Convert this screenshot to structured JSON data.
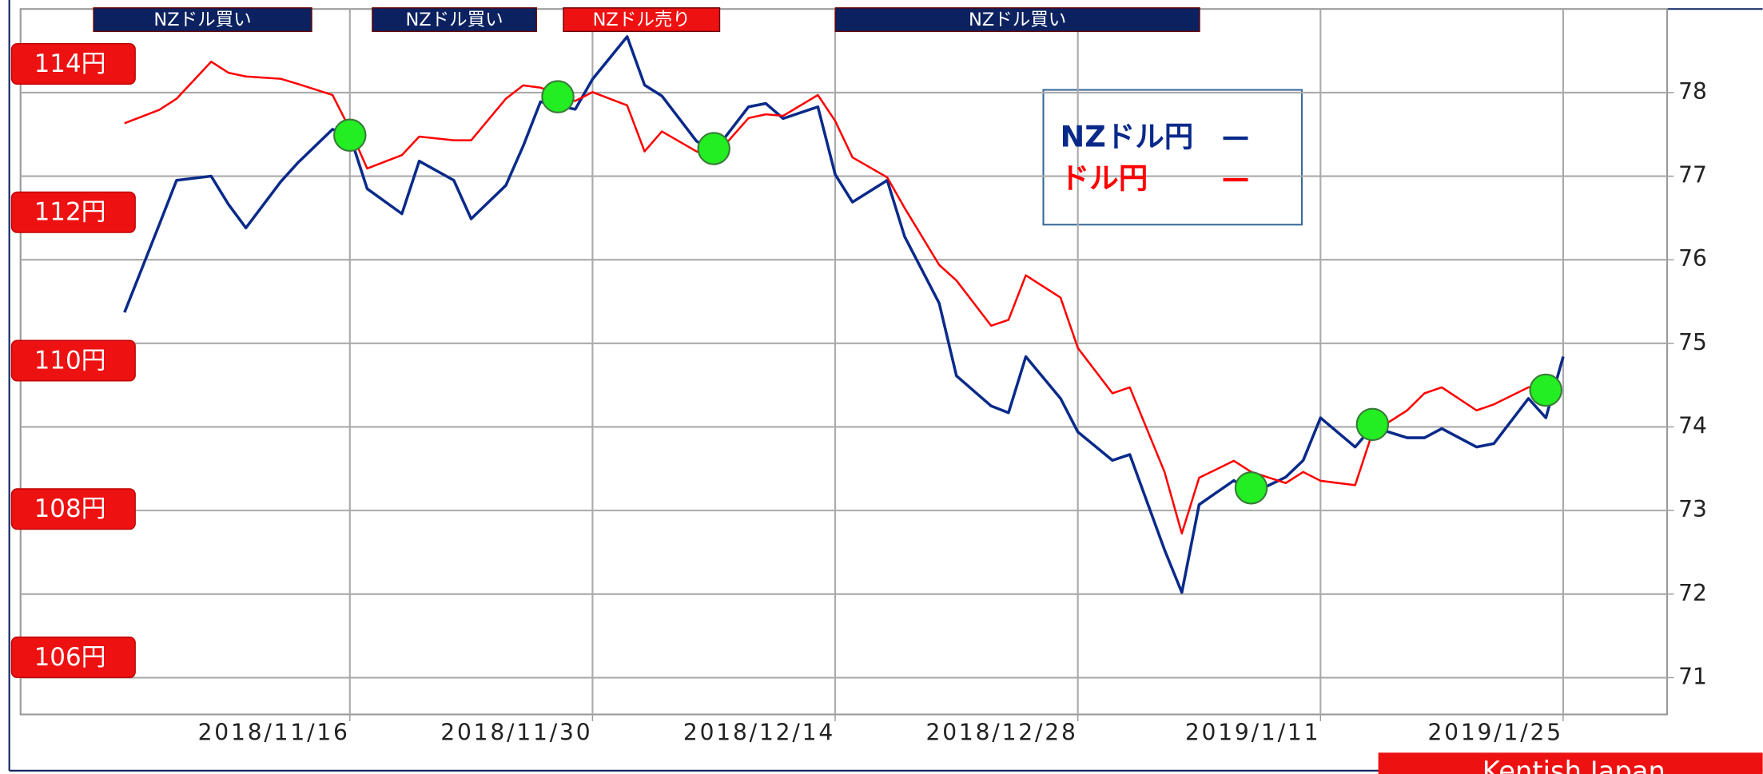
{
  "chart_data": {
    "type": "line",
    "annotations": [
      {
        "text": "NZドル買い",
        "color": "#0b2160"
      },
      {
        "text": "NZドル買い",
        "color": "#0b2160"
      },
      {
        "text": "NZドル売り",
        "color": "#ee1111"
      },
      {
        "text": "NZドル買い",
        "color": "#0b2160"
      }
    ],
    "x": [
      "2018/11/3",
      "2018/11/5",
      "2018/11/6",
      "2018/11/8",
      "2018/11/9",
      "2018/11/10",
      "2018/11/12",
      "2018/11/13",
      "2018/11/15",
      "2018/11/16",
      "2018/11/17",
      "2018/11/19",
      "2018/11/20",
      "2018/11/22",
      "2018/11/23",
      "2018/11/25",
      "2018/11/26",
      "2018/11/27",
      "2018/11/29",
      "2018/11/30",
      "2018/12/2",
      "2018/12/3",
      "2018/12/4",
      "2018/12/6",
      "2018/12/7",
      "2018/12/9",
      "2018/12/10",
      "2018/12/11",
      "2018/12/13",
      "2018/12/14",
      "2018/12/15",
      "2018/12/17",
      "2018/12/18",
      "2018/12/20",
      "2018/12/21",
      "2018/12/23",
      "2018/12/24",
      "2018/12/25",
      "2018/12/27",
      "2018/12/28",
      "2018/12/30",
      "2018/12/31",
      "2019/1/2",
      "2019/1/3",
      "2019/1/4",
      "2019/1/6",
      "2019/1/7",
      "2019/1/9",
      "2019/1/10",
      "2019/1/11",
      "2019/1/13",
      "2019/1/14",
      "2019/1/16",
      "2019/1/17",
      "2019/1/18",
      "2019/1/20",
      "2019/1/21",
      "2019/1/23",
      "2019/1/24",
      "2019/1/25"
    ],
    "series": [
      {
        "name": "NZドル円",
        "color": "#0a2a8a",
        "values": [
          75.37,
          76.42,
          76.95,
          77.0,
          76.66,
          76.38,
          76.93,
          77.16,
          77.56,
          77.49,
          76.85,
          76.55,
          77.18,
          76.95,
          76.49,
          76.89,
          77.36,
          77.89,
          77.8,
          78.16,
          78.67,
          78.09,
          77.96,
          77.42,
          77.29,
          77.83,
          77.87,
          77.69,
          77.83,
          77.02,
          76.69,
          76.95,
          76.28,
          75.48,
          74.61,
          74.25,
          74.17,
          74.84,
          74.34,
          73.94,
          73.6,
          73.67,
          72.53,
          72.02,
          73.07,
          73.36,
          73.2,
          73.4,
          73.6,
          74.11,
          73.76,
          74.0,
          73.87,
          73.87,
          73.98,
          73.76,
          73.8,
          74.34,
          74.11,
          74.84
        ]
      },
      {
        "name": "ドル円",
        "color": "#ff0000",
        "axis": "y2",
        "values": [
          113.2,
          113.38,
          113.53,
          114.03,
          113.88,
          113.83,
          113.8,
          113.73,
          113.58,
          113.12,
          112.59,
          112.77,
          113.02,
          112.97,
          112.97,
          113.53,
          113.71,
          113.68,
          113.5,
          113.62,
          113.44,
          112.82,
          113.09,
          112.82,
          112.74,
          113.27,
          113.32,
          113.3,
          113.58,
          113.23,
          112.74,
          112.47,
          112.06,
          111.29,
          111.08,
          110.47,
          110.55,
          111.15,
          110.85,
          110.17,
          109.56,
          109.64,
          108.5,
          107.67,
          108.42,
          108.65,
          108.5,
          108.35,
          108.5,
          108.38,
          108.32,
          109.03,
          109.33,
          109.56,
          109.64,
          109.33,
          109.41,
          109.64,
          109.64,
          null
        ]
      }
    ],
    "markers": {
      "color": "#22ee22",
      "x": [
        "2018/11/16",
        "2018/11/28",
        "2018/12/7",
        "2019/1/7",
        "2019/1/14",
        "2019/1/24"
      ],
      "values": [
        77.49,
        77.95,
        77.33,
        73.27,
        74.03,
        74.44
      ]
    },
    "xlim": [
      "2018/10/28",
      "2019/1/31"
    ],
    "xticks": [
      "2018/11/16",
      "2018/11/30",
      "2018/12/14",
      "2018/12/28",
      "2019/1/11",
      "2019/1/25"
    ],
    "ylim": [
      70.56,
      79
    ],
    "yticks": [
      71,
      72,
      73,
      74,
      75,
      76,
      77,
      78
    ],
    "y2lim": [
      105.23,
      114.74
    ],
    "y2ticks": [
      {
        "value": 114,
        "label": "114円"
      },
      {
        "value": 112,
        "label": "112円"
      },
      {
        "value": 110,
        "label": "110円"
      },
      {
        "value": 108,
        "label": "108円"
      },
      {
        "value": 106,
        "label": "106円"
      }
    ],
    "y2_label_color": "#ee1111",
    "grid": true,
    "source": "Kentish Japan"
  }
}
